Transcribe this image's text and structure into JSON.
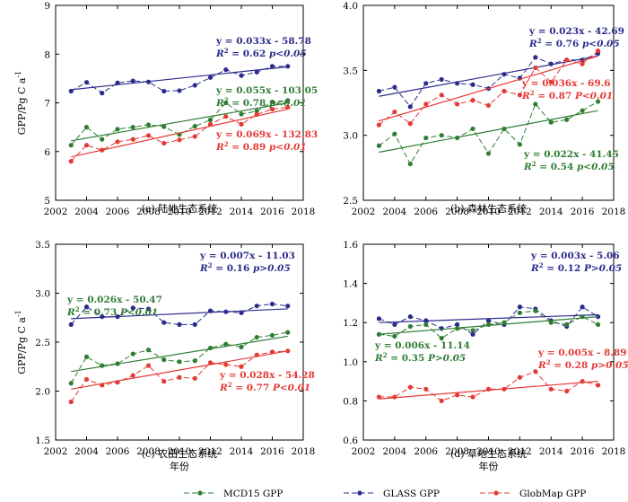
{
  "colors": {
    "mcd15": "#2e7d32",
    "glass": "#2b2b8c",
    "globmap": "#e53935"
  },
  "axis_labels": {
    "y": "GPP/Pg C a",
    "y_sup": "-1",
    "x": "年份"
  },
  "legend": [
    {
      "key": "mcd15",
      "label": "MCD15 GPP"
    },
    {
      "key": "glass",
      "label": "GLASS GPP"
    },
    {
      "key": "globmap",
      "label": "GlobMap GPP"
    }
  ],
  "chart_data": [
    {
      "type": "line",
      "caption": "(a) 陆地生态系统",
      "xlim": [
        2002,
        2018
      ],
      "ylim": [
        5,
        9
      ],
      "xticks": [
        2002,
        2004,
        2006,
        2008,
        2010,
        2012,
        2014,
        2016,
        2018
      ],
      "yticks": [
        5,
        6,
        7,
        8,
        9
      ],
      "x": [
        2003,
        2004,
        2005,
        2006,
        2007,
        2008,
        2009,
        2010,
        2011,
        2012,
        2013,
        2014,
        2015,
        2016,
        2017
      ],
      "series": [
        {
          "name": "GLASS GPP",
          "key": "glass",
          "values": [
            7.24,
            7.42,
            7.2,
            7.41,
            7.45,
            7.43,
            7.24,
            7.25,
            7.36,
            7.52,
            7.68,
            7.56,
            7.63,
            7.75,
            7.75
          ],
          "trend": [
            7.27,
            7.74
          ],
          "eq": "y = 0.033x - 58.78",
          "r2_val": "0.62",
          "p": "p<0.05"
        },
        {
          "name": "MCD15 GPP",
          "key": "mcd15",
          "values": [
            6.13,
            6.5,
            6.25,
            6.46,
            6.5,
            6.55,
            6.51,
            6.35,
            6.52,
            6.65,
            7.0,
            6.77,
            6.83,
            7.02,
            7.05
          ],
          "trend": [
            6.22,
            7.0
          ],
          "eq": "y = 0.055x - 103.05",
          "r2_val": "0.78",
          "p": "p<0.01"
        },
        {
          "name": "GlobMap GPP",
          "key": "globmap",
          "values": [
            5.8,
            6.13,
            6.03,
            6.2,
            6.25,
            6.33,
            6.17,
            6.24,
            6.31,
            6.56,
            6.72,
            6.56,
            6.76,
            6.87,
            6.91
          ],
          "trend": [
            5.89,
            6.87
          ],
          "eq": "y = 0.069x - 132.83",
          "r2_val": "0.89",
          "p": "p<0.01"
        }
      ]
    },
    {
      "type": "line",
      "caption": "(b) 森林生态系统",
      "xlim": [
        2002,
        2018
      ],
      "ylim": [
        2.5,
        4.0
      ],
      "xticks": [
        2002,
        2004,
        2006,
        2008,
        2010,
        2012,
        2014,
        2016,
        2018
      ],
      "yticks": [
        2.5,
        3.0,
        3.5,
        4.0
      ],
      "x": [
        2003,
        2004,
        2005,
        2006,
        2007,
        2008,
        2009,
        2010,
        2011,
        2012,
        2013,
        2014,
        2015,
        2016,
        2017
      ],
      "series": [
        {
          "name": "GLASS GPP",
          "key": "glass",
          "values": [
            3.34,
            3.37,
            3.22,
            3.4,
            3.43,
            3.4,
            3.39,
            3.36,
            3.47,
            3.44,
            3.6,
            3.55,
            3.58,
            3.58,
            3.63
          ],
          "trend": [
            3.3,
            3.61
          ],
          "eq": "y = 0.023x - 42.69",
          "r2_val": "0.76",
          "p": "p<0.05"
        },
        {
          "name": "GlobMap GPP",
          "key": "globmap",
          "values": [
            3.08,
            3.18,
            3.09,
            3.24,
            3.31,
            3.24,
            3.27,
            3.23,
            3.34,
            3.31,
            3.52,
            3.41,
            3.58,
            3.55,
            3.65
          ],
          "trend": [
            3.11,
            3.61
          ],
          "eq": "y = 0.036x - 69.6",
          "r2_val": "0.87",
          "p": "P<0.01"
        },
        {
          "name": "MCD15 GPP",
          "key": "mcd15",
          "values": [
            2.92,
            3.01,
            2.78,
            2.98,
            3.0,
            2.98,
            3.05,
            2.86,
            3.05,
            2.93,
            3.24,
            3.1,
            3.12,
            3.19,
            3.26
          ],
          "trend": [
            2.87,
            3.19
          ],
          "eq": "y = 0.022x - 41.45",
          "r2_val": "0.54",
          "p": "p<0.05"
        }
      ]
    },
    {
      "type": "line",
      "caption": "(c) 农田生态系统",
      "xlim": [
        2002,
        2018
      ],
      "ylim": [
        1.5,
        3.5
      ],
      "xticks": [
        2002,
        2004,
        2006,
        2008,
        2010,
        2012,
        2014,
        2016,
        2018
      ],
      "yticks": [
        1.5,
        2.0,
        2.5,
        3.0,
        3.5
      ],
      "x": [
        2003,
        2004,
        2005,
        2006,
        2007,
        2008,
        2009,
        2010,
        2011,
        2012,
        2013,
        2014,
        2015,
        2016,
        2017
      ],
      "series": [
        {
          "name": "GLASS GPP",
          "key": "glass",
          "values": [
            2.68,
            2.86,
            2.76,
            2.76,
            2.85,
            2.84,
            2.7,
            2.68,
            2.68,
            2.82,
            2.81,
            2.8,
            2.87,
            2.89,
            2.87
          ],
          "trend": [
            2.74,
            2.84
          ],
          "eq": "y = 0.007x - 11.03",
          "r2_val": "0.16",
          "p": "p>0.05"
        },
        {
          "name": "MCD15 GPP",
          "key": "mcd15",
          "values": [
            2.08,
            2.35,
            2.26,
            2.28,
            2.38,
            2.42,
            2.32,
            2.3,
            2.31,
            2.44,
            2.48,
            2.45,
            2.55,
            2.57,
            2.6
          ],
          "trend": [
            2.2,
            2.56
          ],
          "eq": "y = 0.026x - 50.47",
          "r2_val": "0.73",
          "p": "P<0.01"
        },
        {
          "name": "GlobMap GPP",
          "key": "globmap",
          "values": [
            1.89,
            2.12,
            2.06,
            2.09,
            2.16,
            2.26,
            2.1,
            2.14,
            2.13,
            2.29,
            2.27,
            2.25,
            2.37,
            2.4,
            2.41
          ],
          "trend": [
            2.02,
            2.41
          ],
          "eq": "y = 0.028x - 54.28",
          "r2_val": "0.77",
          "p": "P<0.01"
        }
      ]
    },
    {
      "type": "line",
      "caption": "(d) 草地生态系统",
      "xlim": [
        2002,
        2018
      ],
      "ylim": [
        0.6,
        1.6
      ],
      "xticks": [
        2002,
        2004,
        2006,
        2008,
        2010,
        2012,
        2014,
        2016,
        2018
      ],
      "yticks": [
        0.6,
        0.8,
        1.0,
        1.2,
        1.4,
        1.6
      ],
      "x": [
        2003,
        2004,
        2005,
        2006,
        2007,
        2008,
        2009,
        2010,
        2011,
        2012,
        2013,
        2014,
        2015,
        2016,
        2017
      ],
      "series": [
        {
          "name": "GLASS GPP",
          "key": "glass",
          "values": [
            1.22,
            1.19,
            1.23,
            1.21,
            1.17,
            1.19,
            1.14,
            1.21,
            1.19,
            1.28,
            1.27,
            1.21,
            1.18,
            1.28,
            1.23
          ],
          "trend": [
            1.2,
            1.24
          ],
          "eq": "y = 0.003x - 5.06",
          "r2_val": "0.12",
          "p": "P>0.05"
        },
        {
          "name": "MCD15 GPP",
          "key": "mcd15",
          "values": [
            1.14,
            1.13,
            1.18,
            1.19,
            1.12,
            1.17,
            1.16,
            1.19,
            1.2,
            1.25,
            1.26,
            1.2,
            1.19,
            1.23,
            1.19
          ],
          "trend": [
            1.14,
            1.23
          ],
          "eq": "y = 0.006x - 11.14",
          "r2_val": "0.35",
          "p": "P>0.05"
        },
        {
          "name": "GlobMap GPP",
          "key": "globmap",
          "values": [
            0.82,
            0.82,
            0.87,
            0.86,
            0.8,
            0.83,
            0.82,
            0.86,
            0.86,
            0.92,
            0.95,
            0.86,
            0.85,
            0.9,
            0.88
          ],
          "trend": [
            0.81,
            0.9
          ],
          "eq": "y = 0.005x - 8.89",
          "r2_val": "0.28",
          "p": "p>0.05"
        }
      ]
    }
  ]
}
